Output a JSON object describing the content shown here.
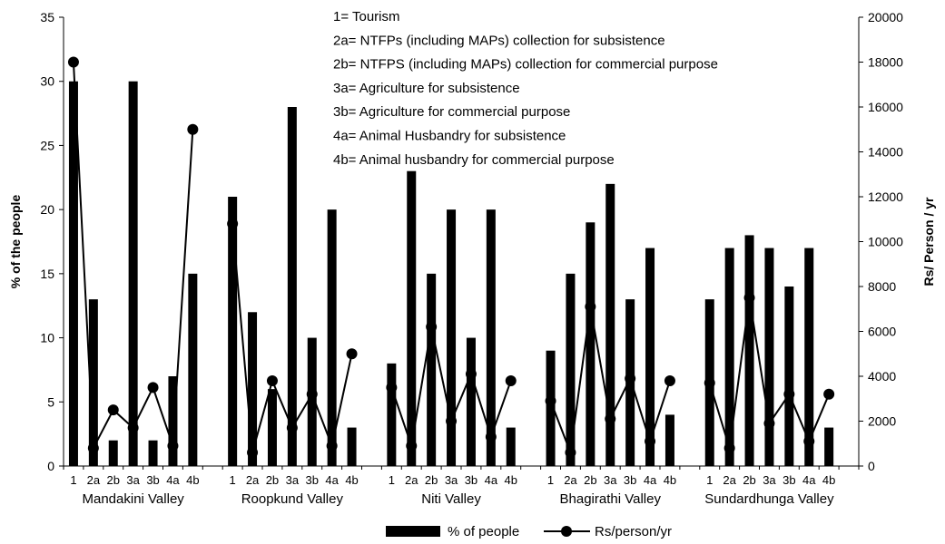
{
  "chart_data": {
    "type": "bar",
    "title": "",
    "xlabel": "",
    "ylabel": "% of the people",
    "y2label": "Rs/ Person / yr",
    "ylim": [
      0,
      35
    ],
    "y2lim": [
      0,
      20000
    ],
    "yticks": [
      0,
      5,
      10,
      15,
      20,
      25,
      30,
      35
    ],
    "y2ticks": [
      0,
      2000,
      4000,
      6000,
      8000,
      10000,
      12000,
      14000,
      16000,
      18000,
      20000
    ],
    "grid": false,
    "legend_position": "bottom",
    "notes": [
      "1= Tourism",
      "2a= NTFPs (including MAPs) collection for subsistence",
      "2b= NTFPS (including MAPs) collection for commercial purpose",
      "3a= Agriculture for subsistence",
      "3b= Agriculture for commercial purpose",
      "4a= Animal Husbandry for subsistence",
      "4b= Animal husbandry for commercial purpose"
    ],
    "categories": [
      "1",
      "2a",
      "2b",
      "3a",
      "3b",
      "4a",
      "4b"
    ],
    "groups": [
      {
        "name": "Mandakini Valley",
        "bars": [
          30,
          13,
          2,
          30,
          2,
          7,
          15
        ],
        "line": [
          18000,
          800,
          2500,
          1700,
          3500,
          900,
          15000
        ]
      },
      {
        "name": "Roopkund Valley",
        "bars": [
          21,
          12,
          6,
          28,
          10,
          20,
          3
        ],
        "line": [
          10800,
          600,
          3800,
          1700,
          3200,
          900,
          5000
        ]
      },
      {
        "name": "Niti Valley",
        "bars": [
          8,
          23,
          15,
          20,
          10,
          20,
          3
        ],
        "line": [
          3500,
          900,
          6200,
          2000,
          4100,
          1300,
          3800
        ]
      },
      {
        "name": "Bhagirathi Valley",
        "bars": [
          9,
          15,
          19,
          22,
          13,
          17,
          4
        ],
        "line": [
          2900,
          600,
          7100,
          2100,
          3900,
          1100,
          3800
        ]
      },
      {
        "name": "Sundardhunga Valley",
        "bars": [
          13,
          17,
          18,
          17,
          14,
          17,
          3
        ],
        "line": [
          3700,
          800,
          7500,
          1900,
          3200,
          1100,
          3200
        ]
      }
    ],
    "series": [
      {
        "name": "% of people",
        "kind": "bar",
        "axis": "left",
        "color": "#000000"
      },
      {
        "name": "Rs/person/yr",
        "kind": "line",
        "axis": "right",
        "color": "#000000"
      }
    ]
  }
}
